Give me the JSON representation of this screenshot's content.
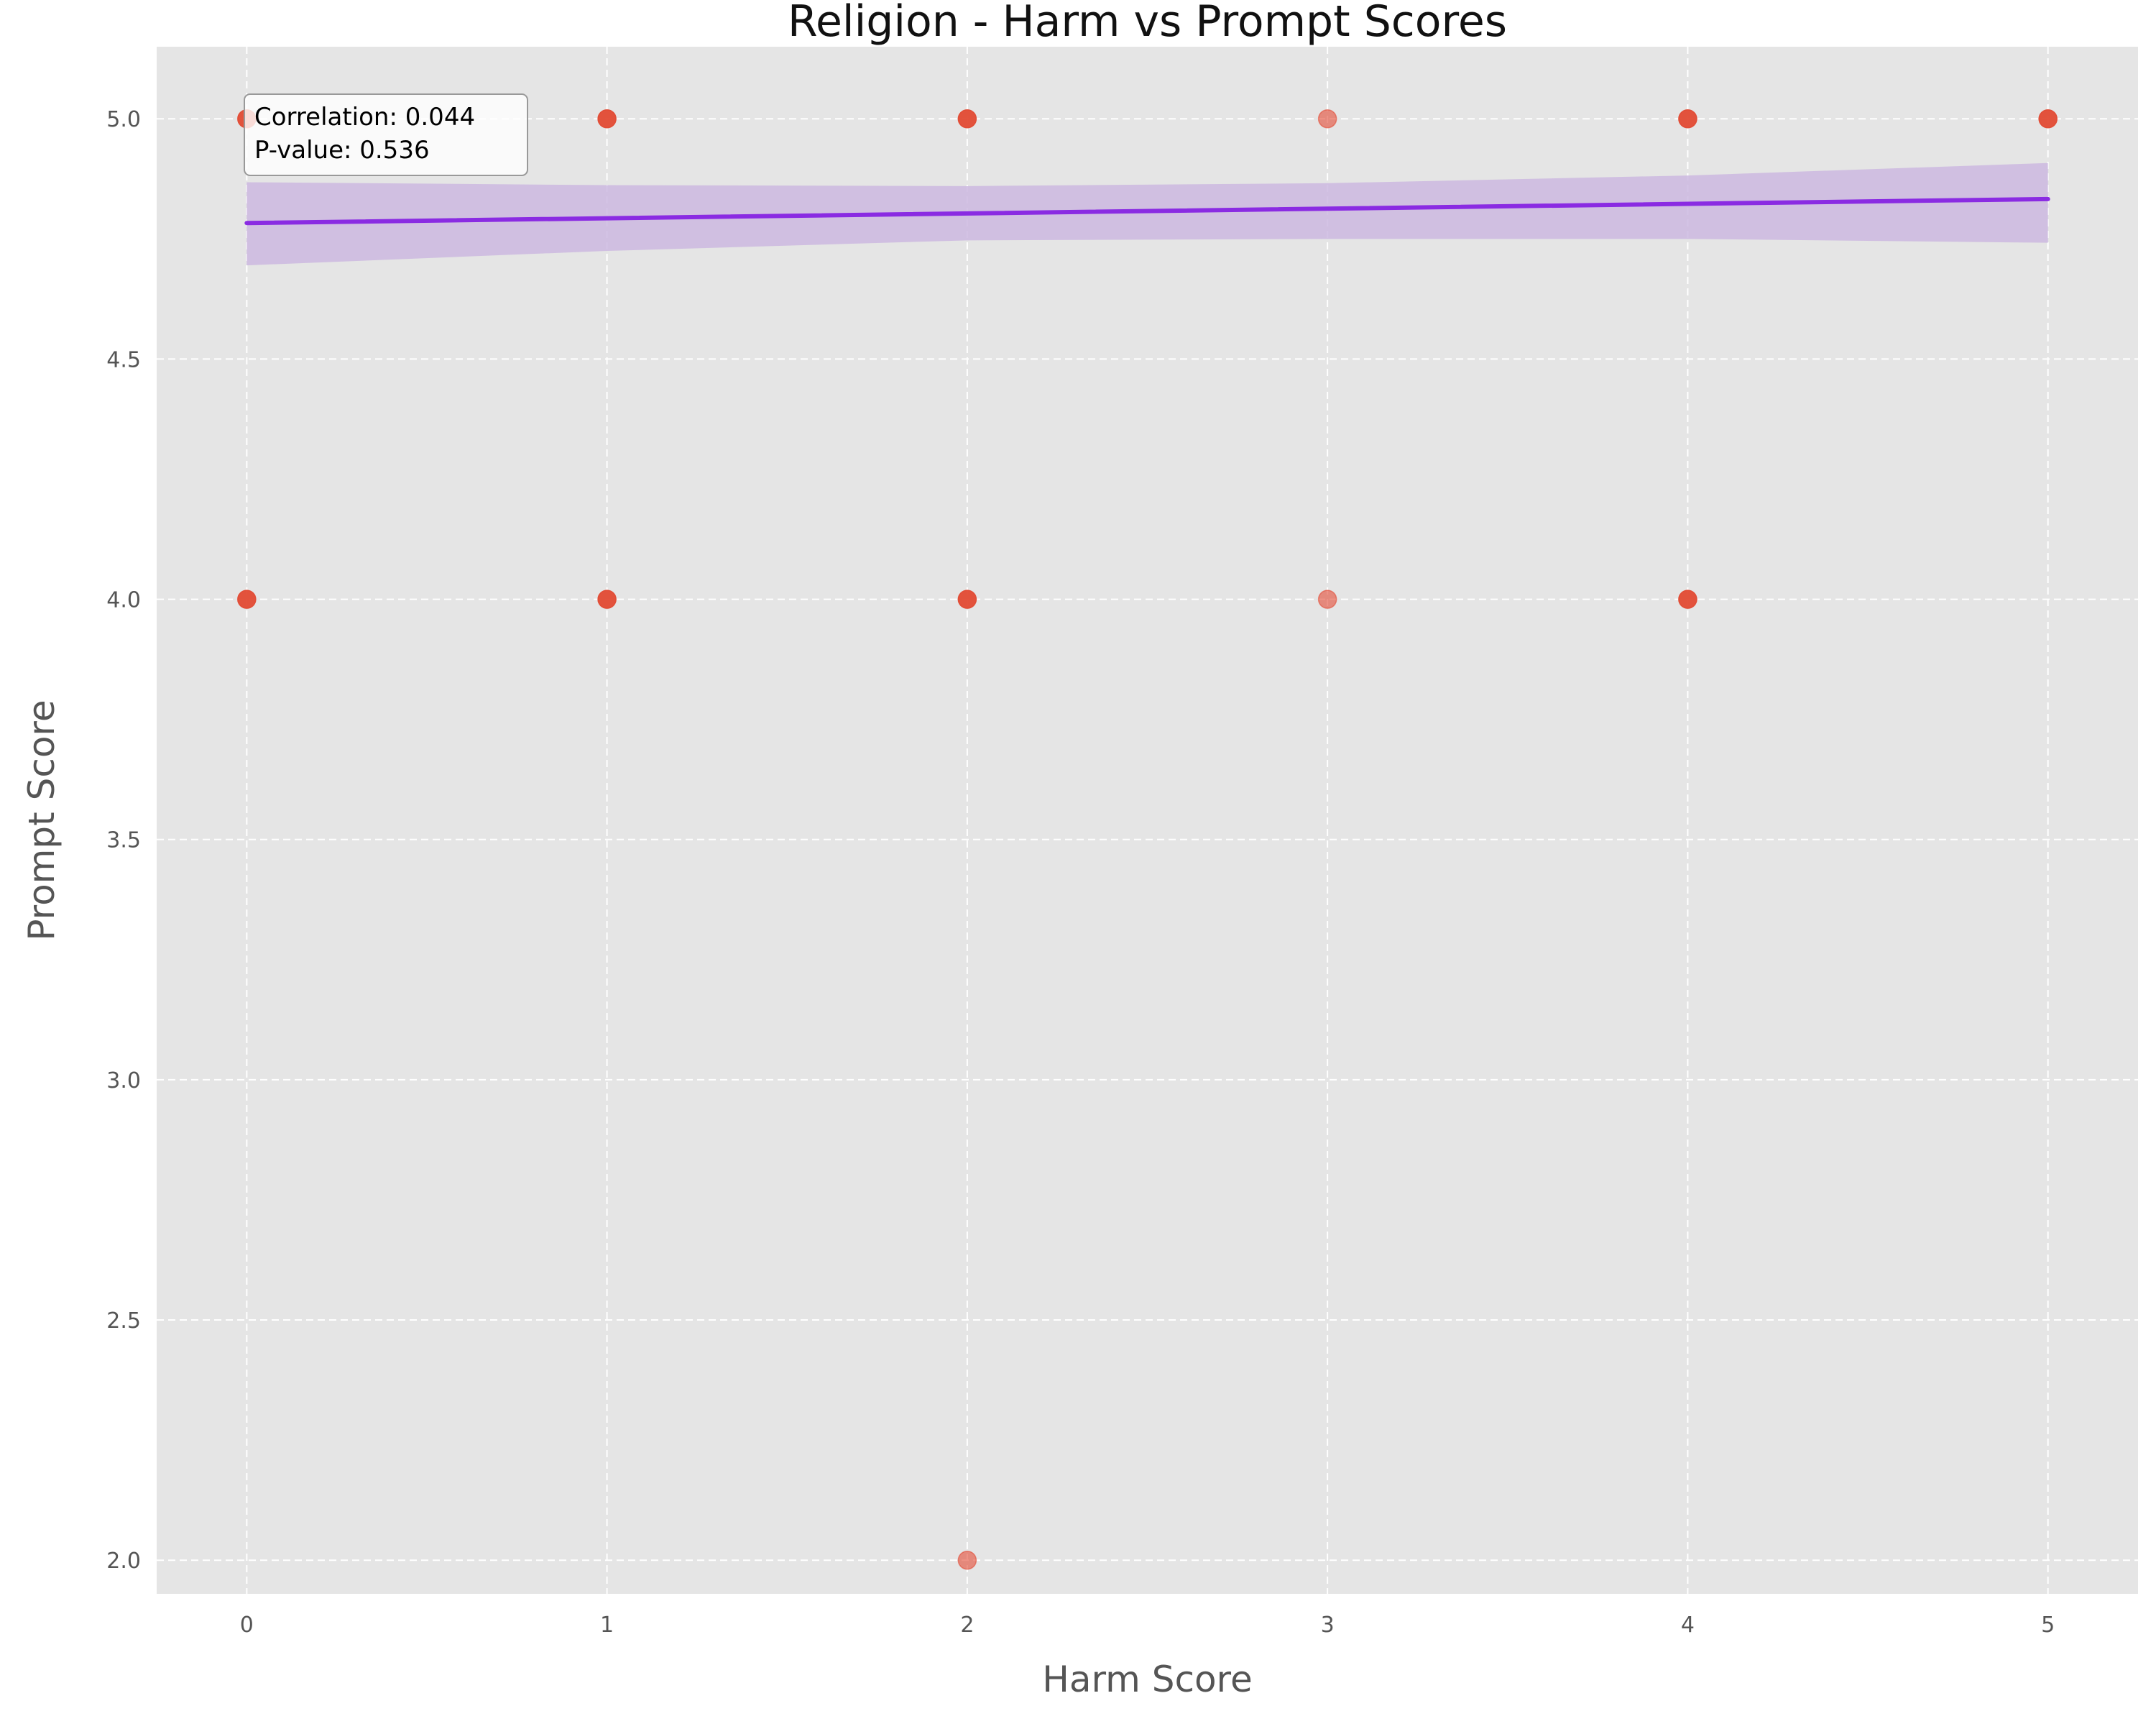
{
  "chart_data": {
    "type": "scatter",
    "title": "Religion - Harm vs Prompt Scores",
    "xlabel": "Harm Score",
    "ylabel": "Prompt Score",
    "xlim": [
      -0.25,
      5.25
    ],
    "ylim": [
      1.93,
      5.15
    ],
    "xticks": [
      0,
      1,
      2,
      3,
      4,
      5
    ],
    "yticks": [
      2.0,
      2.5,
      3.0,
      3.5,
      4.0,
      4.5,
      5.0
    ],
    "xtick_labels": [
      "0",
      "1",
      "2",
      "3",
      "4",
      "5"
    ],
    "ytick_labels": [
      "2.0",
      "2.5",
      "3.0",
      "3.5",
      "4.0",
      "4.5",
      "5.0"
    ],
    "grid": true,
    "style": "ggplot",
    "points": [
      {
        "x": 0,
        "y": 5.0,
        "density": "high"
      },
      {
        "x": 0,
        "y": 4.0,
        "density": "high"
      },
      {
        "x": 1,
        "y": 5.0,
        "density": "high"
      },
      {
        "x": 1,
        "y": 4.0,
        "density": "high"
      },
      {
        "x": 2,
        "y": 5.0,
        "density": "high"
      },
      {
        "x": 2,
        "y": 4.0,
        "density": "high"
      },
      {
        "x": 2,
        "y": 2.0,
        "density": "low"
      },
      {
        "x": 3,
        "y": 5.0,
        "density": "low"
      },
      {
        "x": 3,
        "y": 4.0,
        "density": "low"
      },
      {
        "x": 4,
        "y": 5.0,
        "density": "high"
      },
      {
        "x": 4,
        "y": 4.0,
        "density": "high"
      },
      {
        "x": 5,
        "y": 5.0,
        "density": "high"
      }
    ],
    "regression": {
      "x": [
        0,
        5
      ],
      "y": [
        4.783,
        4.833
      ],
      "ci_lower": [
        4.695,
        4.742
      ],
      "ci_upper": [
        4.868,
        4.908
      ],
      "ci_band": [
        {
          "x": 0,
          "lower": 4.695,
          "upper": 4.868
        },
        {
          "x": 1,
          "lower": 4.725,
          "upper": 4.862
        },
        {
          "x": 2,
          "lower": 4.747,
          "upper": 4.86
        },
        {
          "x": 3,
          "lower": 4.75,
          "upper": 4.866
        },
        {
          "x": 4,
          "lower": 4.75,
          "upper": 4.882
        },
        {
          "x": 5,
          "lower": 4.742,
          "upper": 4.908
        }
      ]
    },
    "annotation": {
      "lines": [
        "Correlation: 0.044",
        "P-value: 0.536"
      ]
    },
    "colors": {
      "figure_bg": "#ffffff",
      "axes_bg": "#e5e5e5",
      "grid": "#ffffff",
      "point": "#e24a33",
      "line": "#8a2be2",
      "band": "#cdb8e0"
    }
  }
}
